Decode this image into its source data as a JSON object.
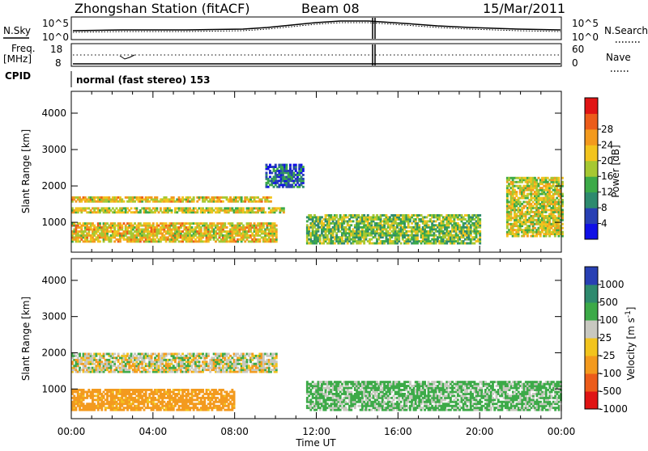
{
  "header": {
    "station": "Zhongshan Station (fitACF)",
    "beam": "Beam 08",
    "date": "15/Mar/2011"
  },
  "status_panels": {
    "nsky": {
      "label": "N.Sky",
      "tick_top": "10^5",
      "tick_bottom": "10^0",
      "right_label": "N.Search",
      "right_tick_top": "10^5",
      "right_tick_bottom": "10^0"
    },
    "freq": {
      "label_top": "Freq.",
      "label_bottom": "[MHz]",
      "tick_top": "18",
      "tick_bottom": "8",
      "right_label": "Nave",
      "right_tick_top": "60",
      "right_tick_bottom": "0"
    },
    "cpid": {
      "label": "CPID",
      "mode": "normal (fast stereo) 153"
    }
  },
  "chart_data": [
    {
      "type": "heatmap",
      "panel": "power",
      "ylabel": "Slant Range [km]",
      "xlabel": "",
      "ylim": [
        180,
        4600
      ],
      "y_ticks": [
        "1000",
        "2000",
        "3000",
        "4000"
      ],
      "colorbar": {
        "label": "Power [dB]",
        "ticks": [
          "4",
          "8",
          "12",
          "16",
          "20",
          "24",
          "28"
        ],
        "colors": [
          "#1010e6",
          "#2840b4",
          "#2e8a6e",
          "#3caa48",
          "#a6c832",
          "#f2c41e",
          "#f39a1e",
          "#ec5c1a",
          "#e01414"
        ]
      },
      "regions": [
        {
          "t0": 0.0,
          "t1": 9.8,
          "r0": 1550,
          "r1": 1700,
          "level": 20
        },
        {
          "t0": 0.0,
          "t1": 10.4,
          "r0": 1250,
          "r1": 1400,
          "level": 18
        },
        {
          "t0": 9.5,
          "t1": 11.3,
          "r0": 1950,
          "r1": 2600,
          "level": 6
        },
        {
          "t0": 0.0,
          "t1": 10.0,
          "r0": 450,
          "r1": 1000,
          "level": 20
        },
        {
          "t0": 11.5,
          "t1": 20.0,
          "r0": 400,
          "r1": 1200,
          "level": 14
        },
        {
          "t0": 21.3,
          "t1": 24.0,
          "r0": 600,
          "r1": 2200,
          "level": 18
        }
      ]
    },
    {
      "type": "heatmap",
      "panel": "velocity",
      "ylabel": "Slant Range [km]",
      "xlabel": "Time UT",
      "ylim": [
        180,
        4600
      ],
      "y_ticks": [
        "1000",
        "2000",
        "3000",
        "4000"
      ],
      "x_ticks": [
        "00:00",
        "04:00",
        "08:00",
        "12:00",
        "16:00",
        "20:00",
        "00:00"
      ],
      "colorbar": {
        "label": "Velocity [m s^-1]",
        "ticks": [
          "1000",
          "500",
          "100",
          "25",
          "-25",
          "-100",
          "-500",
          "-1000"
        ],
        "colors": [
          "#2840b4",
          "#2e8a6e",
          "#3caa48",
          "#c8c8c0",
          "#f2c41e",
          "#f39a1e",
          "#ec5c1a",
          "#e01414"
        ]
      },
      "regions": [
        {
          "t0": 0.0,
          "t1": 10.0,
          "r0": 1450,
          "r1": 2000,
          "velocity": 0
        },
        {
          "t0": 0.0,
          "t1": 8.0,
          "r0": 400,
          "r1": 1000,
          "velocity": -150
        },
        {
          "t0": 11.5,
          "t1": 24.0,
          "r0": 400,
          "r1": 1200,
          "velocity": 100
        }
      ]
    }
  ]
}
